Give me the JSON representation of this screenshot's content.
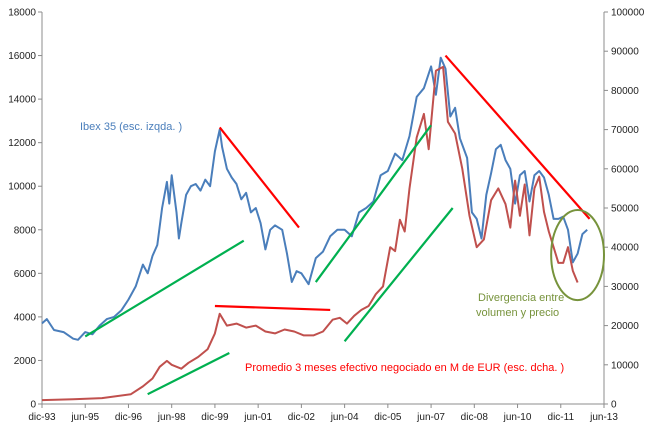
{
  "chart_data": {
    "type": "line",
    "x_tick_labels": [
      "dic-93",
      "jun-95",
      "dic-96",
      "jun-98",
      "dic-99",
      "jun-01",
      "dic-02",
      "jun-04",
      "dic-05",
      "jun-07",
      "dic-08",
      "jun-10",
      "dic-11",
      "jun-13"
    ],
    "x_range": [
      "1993-12",
      "2013-06"
    ],
    "y_left": {
      "min": 0,
      "max": 18000,
      "ticks": [
        0,
        2000,
        4000,
        6000,
        8000,
        10000,
        12000,
        14000,
        16000,
        18000
      ]
    },
    "y_right": {
      "min": 0,
      "max": 100000,
      "ticks": [
        0,
        10000,
        20000,
        30000,
        40000,
        50000,
        60000,
        70000,
        80000,
        90000,
        100000
      ]
    },
    "grid": false,
    "series": [
      {
        "name": "Ibex 35 (esc. izqda. )",
        "axis": "left",
        "color": "#4a7ebb",
        "points": [
          [
            "1993-12",
            3700
          ],
          [
            "1994-02",
            3900
          ],
          [
            "1994-05",
            3400
          ],
          [
            "1994-09",
            3300
          ],
          [
            "1995-01",
            3000
          ],
          [
            "1995-03",
            2950
          ],
          [
            "1995-06",
            3300
          ],
          [
            "1995-09",
            3200
          ],
          [
            "1995-12",
            3600
          ],
          [
            "1996-03",
            3900
          ],
          [
            "1996-06",
            4000
          ],
          [
            "1996-09",
            4300
          ],
          [
            "1996-12",
            4800
          ],
          [
            "1997-03",
            5400
          ],
          [
            "1997-06",
            6400
          ],
          [
            "1997-08",
            6000
          ],
          [
            "1997-10",
            6800
          ],
          [
            "1997-12",
            7300
          ],
          [
            "1998-02",
            9000
          ],
          [
            "1998-04",
            10200
          ],
          [
            "1998-05",
            9200
          ],
          [
            "1998-06",
            10500
          ],
          [
            "1998-08",
            8800
          ],
          [
            "1998-09",
            7600
          ],
          [
            "1998-10",
            8300
          ],
          [
            "1998-12",
            9600
          ],
          [
            "1999-02",
            10000
          ],
          [
            "1999-04",
            10100
          ],
          [
            "1999-06",
            9800
          ],
          [
            "1999-08",
            10300
          ],
          [
            "1999-10",
            10000
          ],
          [
            "1999-12",
            11600
          ],
          [
            "2000-02",
            12600
          ],
          [
            "2000-03",
            11800
          ],
          [
            "2000-05",
            10800
          ],
          [
            "2000-07",
            10400
          ],
          [
            "2000-09",
            10100
          ],
          [
            "2000-11",
            9400
          ],
          [
            "2001-01",
            9700
          ],
          [
            "2001-03",
            8800
          ],
          [
            "2001-05",
            9000
          ],
          [
            "2001-07",
            8300
          ],
          [
            "2001-09",
            7100
          ],
          [
            "2001-11",
            8000
          ],
          [
            "2002-01",
            8200
          ],
          [
            "2002-04",
            8000
          ],
          [
            "2002-06",
            6900
          ],
          [
            "2002-08",
            5600
          ],
          [
            "2002-10",
            6100
          ],
          [
            "2002-12",
            6000
          ],
          [
            "2003-03",
            5500
          ],
          [
            "2003-06",
            6700
          ],
          [
            "2003-09",
            7000
          ],
          [
            "2003-12",
            7700
          ],
          [
            "2004-03",
            8000
          ],
          [
            "2004-06",
            8000
          ],
          [
            "2004-09",
            7700
          ],
          [
            "2004-12",
            8800
          ],
          [
            "2005-03",
            9000
          ],
          [
            "2005-06",
            9300
          ],
          [
            "2005-09",
            10500
          ],
          [
            "2005-12",
            10700
          ],
          [
            "2006-03",
            11500
          ],
          [
            "2006-06",
            11200
          ],
          [
            "2006-09",
            12300
          ],
          [
            "2006-12",
            14100
          ],
          [
            "2007-03",
            14500
          ],
          [
            "2007-06",
            15500
          ],
          [
            "2007-08",
            14200
          ],
          [
            "2007-10",
            15900
          ],
          [
            "2007-12",
            15400
          ],
          [
            "2008-02",
            13200
          ],
          [
            "2008-04",
            13600
          ],
          [
            "2008-06",
            12200
          ],
          [
            "2008-09",
            11300
          ],
          [
            "2008-11",
            8800
          ],
          [
            "2009-01",
            8500
          ],
          [
            "2009-03",
            7600
          ],
          [
            "2009-05",
            9600
          ],
          [
            "2009-07",
            10600
          ],
          [
            "2009-09",
            11700
          ],
          [
            "2009-11",
            11900
          ],
          [
            "2010-01",
            11200
          ],
          [
            "2010-03",
            10800
          ],
          [
            "2010-05",
            9200
          ],
          [
            "2010-07",
            10500
          ],
          [
            "2010-09",
            10700
          ],
          [
            "2010-11",
            9300
          ],
          [
            "2011-01",
            10500
          ],
          [
            "2011-03",
            10700
          ],
          [
            "2011-05",
            10400
          ],
          [
            "2011-07",
            9600
          ],
          [
            "2011-09",
            8500
          ],
          [
            "2011-11",
            8500
          ],
          [
            "2012-01",
            8600
          ],
          [
            "2012-03",
            8000
          ],
          [
            "2012-05",
            6500
          ],
          [
            "2012-07",
            6900
          ],
          [
            "2012-09",
            7800
          ],
          [
            "2012-11",
            8000
          ]
        ]
      },
      {
        "name": "Promedio 3 meses efectivo negociado en M de EUR (esc. dcha. )",
        "axis": "right",
        "color": "#c0504d",
        "points": [
          [
            "1993-12",
            1000
          ],
          [
            "1995-01",
            1200
          ],
          [
            "1996-01",
            1500
          ],
          [
            "1997-01",
            2500
          ],
          [
            "1997-06",
            4500
          ],
          [
            "1997-10",
            6500
          ],
          [
            "1998-01",
            9500
          ],
          [
            "1998-04",
            11000
          ],
          [
            "1998-06",
            10000
          ],
          [
            "1998-10",
            9000
          ],
          [
            "1999-01",
            10500
          ],
          [
            "1999-05",
            12000
          ],
          [
            "1999-09",
            14000
          ],
          [
            "1999-12",
            18000
          ],
          [
            "2000-02",
            23000
          ],
          [
            "2000-05",
            20000
          ],
          [
            "2000-09",
            20500
          ],
          [
            "2001-01",
            19500
          ],
          [
            "2001-05",
            20000
          ],
          [
            "2001-09",
            18500
          ],
          [
            "2002-01",
            18000
          ],
          [
            "2002-05",
            19000
          ],
          [
            "2002-09",
            18500
          ],
          [
            "2003-01",
            17500
          ],
          [
            "2003-05",
            17500
          ],
          [
            "2003-09",
            18500
          ],
          [
            "2004-01",
            21500
          ],
          [
            "2004-04",
            22000
          ],
          [
            "2004-07",
            20500
          ],
          [
            "2004-10",
            22500
          ],
          [
            "2005-01",
            24000
          ],
          [
            "2005-04",
            25000
          ],
          [
            "2005-07",
            28000
          ],
          [
            "2005-10",
            30000
          ],
          [
            "2006-01",
            40000
          ],
          [
            "2006-03",
            39000
          ],
          [
            "2006-05",
            47000
          ],
          [
            "2006-07",
            44000
          ],
          [
            "2006-09",
            55000
          ],
          [
            "2006-12",
            68000
          ],
          [
            "2007-03",
            74000
          ],
          [
            "2007-05",
            65000
          ],
          [
            "2007-08",
            85000
          ],
          [
            "2007-11",
            86000
          ],
          [
            "2008-01",
            72000
          ],
          [
            "2008-04",
            69000
          ],
          [
            "2008-07",
            60000
          ],
          [
            "2008-10",
            48000
          ],
          [
            "2009-01",
            40000
          ],
          [
            "2009-04",
            42000
          ],
          [
            "2009-07",
            52000
          ],
          [
            "2009-10",
            55000
          ],
          [
            "2010-01",
            51000
          ],
          [
            "2010-03",
            45000
          ],
          [
            "2010-05",
            57000
          ],
          [
            "2010-07",
            48000
          ],
          [
            "2010-09",
            56000
          ],
          [
            "2010-11",
            43000
          ],
          [
            "2011-01",
            55000
          ],
          [
            "2011-03",
            58000
          ],
          [
            "2011-05",
            49000
          ],
          [
            "2011-07",
            44000
          ],
          [
            "2011-09",
            40000
          ],
          [
            "2011-11",
            36000
          ],
          [
            "2012-01",
            36000
          ],
          [
            "2012-03",
            40000
          ],
          [
            "2012-05",
            34000
          ],
          [
            "2012-07",
            31000
          ]
        ]
      }
    ],
    "trend_lines": [
      {
        "color": "#00b050",
        "axis": "left",
        "from": [
          "1995-06",
          3100
        ],
        "to": [
          "2000-12",
          7500
        ]
      },
      {
        "color": "#ff0000",
        "axis": "left",
        "from": [
          "2000-02",
          12700
        ],
        "to": [
          "2002-11",
          8100
        ]
      },
      {
        "color": "#00b050",
        "axis": "left",
        "from": [
          "2003-06",
          5600
        ],
        "to": [
          "2007-06",
          12800
        ]
      },
      {
        "color": "#ff0000",
        "axis": "left",
        "from": [
          "2007-12",
          16000
        ],
        "to": [
          "2012-12",
          8500
        ]
      },
      {
        "color": "#ff0000",
        "axis": "right",
        "from": [
          "1999-12",
          25000
        ],
        "to": [
          "2003-12",
          24000
        ]
      },
      {
        "color": "#00b050",
        "axis": "right",
        "from": [
          "1997-08",
          2500
        ],
        "to": [
          "2000-06",
          13000
        ]
      },
      {
        "color": "#00b050",
        "axis": "right",
        "from": [
          "2004-06",
          16000
        ],
        "to": [
          "2008-03",
          50000
        ]
      }
    ],
    "highlight_ellipse": {
      "color": "#77933c",
      "center": [
        "2012-07",
        38000
      ],
      "axis": "right",
      "rx_months": 11,
      "ry": 11500
    },
    "annotations": [
      {
        "text": "Ibex 35 (esc. izqda. )",
        "color": "#4a7ebb"
      },
      {
        "text": "Promedio 3 meses efectivo negociado en M de EUR (esc. dcha. )",
        "color": "#ff0000"
      },
      {
        "text": "Divergencia entre volumen y precio",
        "color": "#77933c"
      }
    ]
  }
}
